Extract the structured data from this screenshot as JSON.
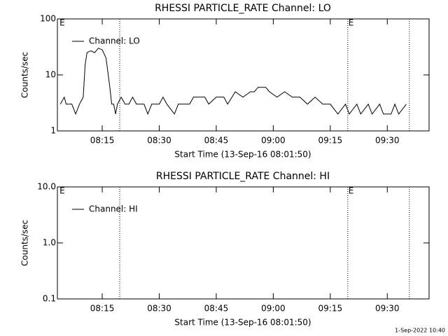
{
  "chart_data": [
    {
      "type": "line",
      "title": "RHESSI PARTICLE_RATE Channel: LO",
      "xlabel": "Start Time (13-Sep-16 08:01:50)",
      "ylabel": "Counts/sec",
      "log_y": true,
      "ylim": [
        1,
        100
      ],
      "yticks": [
        1,
        10,
        100
      ],
      "xlim": [
        483.2,
        581
      ],
      "xticks": [
        {
          "value": 495,
          "label": "08:15"
        },
        {
          "value": 510,
          "label": "08:30"
        },
        {
          "value": 525,
          "label": "08:45"
        },
        {
          "value": 540,
          "label": "09:00"
        },
        {
          "value": 555,
          "label": "09:15"
        },
        {
          "value": 570,
          "label": "09:30"
        }
      ],
      "vlines": [
        499.6,
        559.6,
        575.8
      ],
      "annotations": [
        {
          "x": 483.6,
          "text": "E"
        },
        {
          "x": 559.6,
          "text": "E"
        }
      ],
      "series": [
        {
          "name": "Channel: LO",
          "color": "#000000",
          "x": [
            484,
            485,
            485.5,
            487,
            488,
            489,
            490,
            490.5,
            491,
            492,
            493,
            494,
            495,
            496,
            497,
            497.5,
            498,
            498.5,
            499,
            500,
            501,
            502,
            503,
            504,
            506,
            507,
            508,
            510,
            511,
            512,
            514,
            515,
            518,
            519,
            522,
            523,
            525,
            527,
            528,
            530,
            532,
            534,
            535,
            536,
            538,
            539,
            541,
            543,
            545,
            547,
            549,
            551,
            553,
            555,
            557,
            559,
            560,
            562,
            563,
            565,
            566,
            568,
            569,
            571,
            572,
            573,
            575
          ],
          "values": [
            3,
            4,
            3,
            3,
            2,
            3,
            4,
            15,
            25,
            27,
            25,
            30,
            28,
            20,
            6,
            3,
            3,
            2,
            3,
            4,
            3,
            3,
            4,
            3,
            3,
            2,
            3,
            3,
            4,
            3,
            2,
            3,
            3,
            4,
            4,
            3,
            4,
            4,
            3,
            5,
            4,
            5,
            5,
            6,
            6,
            5,
            4,
            5,
            4,
            4,
            3,
            4,
            3,
            3,
            2,
            3,
            2,
            3,
            2,
            3,
            2,
            3,
            2,
            2,
            3,
            2,
            3
          ]
        }
      ]
    },
    {
      "type": "line",
      "title": "RHESSI PARTICLE_RATE Channel: HI",
      "xlabel": "Start Time (13-Sep-16 08:01:50)",
      "ylabel": "Counts/sec",
      "log_y": true,
      "ylim": [
        0.1,
        10
      ],
      "yticks": [
        {
          "value": 0.1,
          "label": "0.1"
        },
        {
          "value": 1,
          "label": "1.0"
        },
        {
          "value": 10,
          "label": "10.0"
        }
      ],
      "xlim": [
        483.2,
        581
      ],
      "xticks": [
        {
          "value": 495,
          "label": "08:15"
        },
        {
          "value": 510,
          "label": "08:30"
        },
        {
          "value": 525,
          "label": "08:45"
        },
        {
          "value": 540,
          "label": "09:00"
        },
        {
          "value": 555,
          "label": "09:15"
        },
        {
          "value": 570,
          "label": "09:30"
        }
      ],
      "vlines": [
        499.6,
        559.6,
        575.8
      ],
      "annotations": [
        {
          "x": 483.6,
          "text": "E"
        },
        {
          "x": 559.6,
          "text": "E"
        }
      ],
      "series": [
        {
          "name": "Channel: HI",
          "color": "#000000",
          "x": [],
          "values": []
        }
      ]
    }
  ],
  "footer": "1-Sep-2022 10:40"
}
